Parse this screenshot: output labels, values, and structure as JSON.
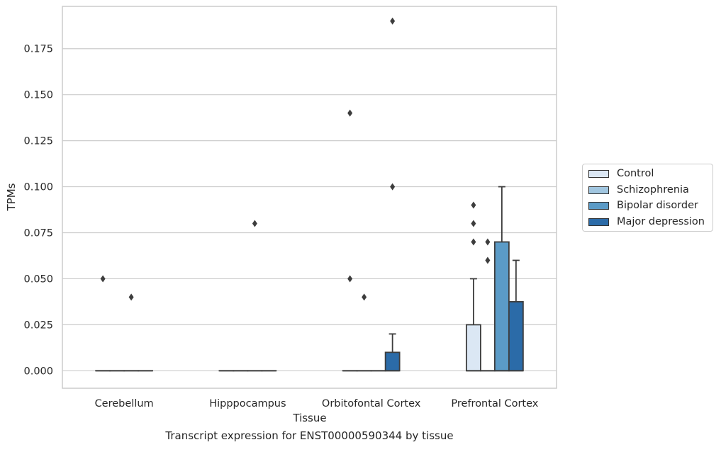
{
  "chart_data": {
    "type": "box",
    "xlabel": "Tissue",
    "ylabel": "TPMs",
    "caption": "Transcript expression for ENST00000590344 by tissue",
    "categories": [
      "Cerebellum",
      "Hipppocampus",
      "Orbitofontal Cortex",
      "Prefrontal Cortex"
    ],
    "ylim": [
      -0.0095,
      0.198
    ],
    "yticks": [
      "0.000",
      "0.025",
      "0.050",
      "0.075",
      "0.100",
      "0.125",
      "0.150",
      "0.175"
    ],
    "grid": "horizontal",
    "legend_position": "right",
    "series": [
      {
        "name": "Control",
        "color": "#dbe7f4",
        "boxes": [
          {
            "q1": 0,
            "median": 0,
            "q3": 0,
            "whisker_low": 0,
            "whisker_high": 0,
            "outliers": [
              0.05
            ]
          },
          {
            "q1": 0,
            "median": 0,
            "q3": 0,
            "whisker_low": 0,
            "whisker_high": 0,
            "outliers": []
          },
          {
            "q1": 0,
            "median": 0,
            "q3": 0,
            "whisker_low": 0,
            "whisker_high": 0,
            "outliers": [
              0.14,
              0.05
            ]
          },
          {
            "q1": 0,
            "median": 0,
            "q3": 0.025,
            "whisker_low": 0,
            "whisker_high": 0.05,
            "outliers": [
              0.09,
              0.08,
              0.07
            ]
          }
        ]
      },
      {
        "name": "Schizophrenia",
        "color": "#a1c6e0",
        "boxes": [
          {
            "q1": 0,
            "median": 0,
            "q3": 0,
            "whisker_low": 0,
            "whisker_high": 0,
            "outliers": []
          },
          {
            "q1": 0,
            "median": 0,
            "q3": 0,
            "whisker_low": 0,
            "whisker_high": 0,
            "outliers": []
          },
          {
            "q1": 0,
            "median": 0,
            "q3": 0,
            "whisker_low": 0,
            "whisker_high": 0,
            "outliers": [
              0.04
            ]
          },
          {
            "q1": 0,
            "median": 0,
            "q3": 0,
            "whisker_low": 0,
            "whisker_high": 0,
            "outliers": [
              0.07,
              0.06
            ]
          }
        ]
      },
      {
        "name": "Bipolar disorder",
        "color": "#5b9bc7",
        "boxes": [
          {
            "q1": 0,
            "median": 0,
            "q3": 0,
            "whisker_low": 0,
            "whisker_high": 0,
            "outliers": [
              0.04
            ]
          },
          {
            "q1": 0,
            "median": 0,
            "q3": 0,
            "whisker_low": 0,
            "whisker_high": 0,
            "outliers": [
              0.08
            ]
          },
          {
            "q1": 0,
            "median": 0,
            "q3": 0,
            "whisker_low": 0,
            "whisker_high": 0,
            "outliers": []
          },
          {
            "q1": 0,
            "median": 0,
            "q3": 0.07,
            "whisker_low": 0,
            "whisker_high": 0.1,
            "outliers": []
          }
        ]
      },
      {
        "name": "Major depression",
        "color": "#2b6ba8",
        "boxes": [
          {
            "q1": 0,
            "median": 0,
            "q3": 0,
            "whisker_low": 0,
            "whisker_high": 0,
            "outliers": []
          },
          {
            "q1": 0,
            "median": 0,
            "q3": 0,
            "whisker_low": 0,
            "whisker_high": 0,
            "outliers": []
          },
          {
            "q1": 0,
            "median": 0,
            "q3": 0.01,
            "whisker_low": 0,
            "whisker_high": 0.02,
            "outliers": [
              0.19,
              0.1
            ]
          },
          {
            "q1": 0,
            "median": 0,
            "q3": 0.0375,
            "whisker_low": 0,
            "whisker_high": 0.06,
            "outliers": []
          }
        ]
      }
    ]
  }
}
